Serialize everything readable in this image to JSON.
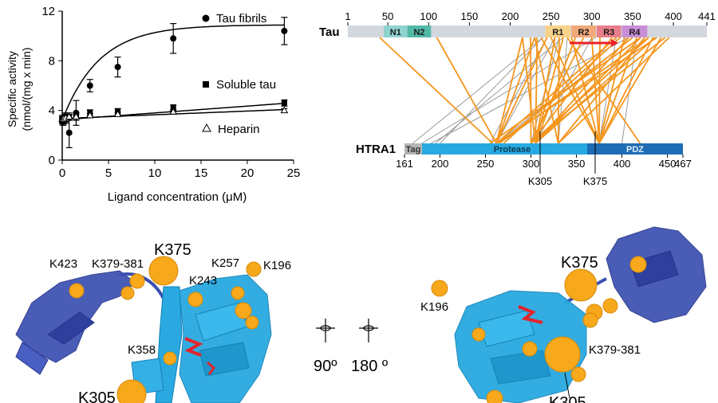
{
  "chart_data": {
    "type": "scatter",
    "xlabel": "Ligand concentration (μM)",
    "ylabel_line1": "Specific activity",
    "ylabel_line2": "(nmol/(mg x min)",
    "xlim": [
      0,
      25
    ],
    "ylim": [
      0,
      12
    ],
    "x_ticks": [
      0,
      5,
      10,
      15,
      20,
      25
    ],
    "y_ticks": [
      0,
      4,
      8,
      12
    ],
    "grid": false,
    "legend": "inline-right",
    "series": [
      {
        "name": "Tau fibrils",
        "marker": "circle",
        "x": [
          0,
          0.1,
          0.2,
          0.375,
          0.75,
          1.5,
          3,
          6,
          12,
          24
        ],
        "y": [
          3.3,
          3.1,
          3.2,
          3.4,
          2.2,
          3.8,
          6.0,
          7.5,
          9.8,
          10.4
        ],
        "err": [
          0.3,
          0.3,
          0.3,
          0.4,
          1.2,
          1.0,
          0.5,
          0.8,
          1.2,
          1.1
        ],
        "fit": {
          "y0": 3.2,
          "ymax": 10.9,
          "k": 0.25
        }
      },
      {
        "name": "Soluble tau",
        "marker": "square",
        "x": [
          0,
          0.1,
          0.2,
          0.375,
          0.75,
          1.5,
          3,
          6,
          12,
          24
        ],
        "y": [
          3.2,
          3.3,
          3.3,
          3.4,
          3.5,
          3.5,
          3.8,
          3.9,
          4.2,
          4.6
        ],
        "err": [
          0.3,
          0.3,
          0.3,
          0.3,
          0.3,
          0.3,
          0.25,
          0.25,
          0.25,
          0.25
        ],
        "fit": {
          "y0": 3.25,
          "slope": 0.055,
          "curve": 0.0
        }
      },
      {
        "name": "Heparin",
        "marker": "triangle-open",
        "x": [
          0,
          0.1,
          0.2,
          0.375,
          0.75,
          1.5,
          3,
          6,
          12,
          24
        ],
        "y": [
          3.3,
          3.3,
          3.4,
          3.4,
          3.5,
          3.5,
          3.6,
          3.7,
          3.9,
          4.0
        ],
        "err": [
          0.15,
          0.15,
          0.15,
          0.15,
          0.15,
          0.15,
          0.15,
          0.15,
          0.15,
          0.15
        ],
        "fit": {
          "y0": 3.35,
          "slope": 0.03,
          "curve": 0.0
        }
      }
    ]
  },
  "crosslink_map": {
    "tau_label": "Tau",
    "htra1_label": "HTRA1",
    "tau_ticks": [
      "1",
      "50",
      "100",
      "150",
      "200",
      "250",
      "300",
      "350",
      "400",
      "441"
    ],
    "tau_domains": [
      {
        "label": "N1",
        "start": 45,
        "end": 74,
        "color": "#8fd3d0"
      },
      {
        "label": "N2",
        "start": 74,
        "end": 103,
        "color": "#52b9a6"
      },
      {
        "label": "R1",
        "start": 243,
        "end": 274,
        "color": "#f8d28a"
      },
      {
        "label": "R2",
        "start": 275,
        "end": 305,
        "color": "#f1a87a"
      },
      {
        "label": "R3",
        "start": 306,
        "end": 336,
        "color": "#e87f8a"
      },
      {
        "label": "R4",
        "start": 337,
        "end": 368,
        "color": "#c88ed6"
      }
    ],
    "htra1_domains": [
      {
        "label": "Tag",
        "color": "#b5b5b5"
      },
      {
        "label": "Protease",
        "color": "#27aae1"
      },
      {
        "label": "PDZ",
        "color": "#1f6db5"
      }
    ],
    "htra1_ticks": [
      "161",
      "200",
      "250",
      "300",
      "350",
      "400",
      "450",
      "467"
    ],
    "htra1_sites": [
      "K305",
      "K375"
    ],
    "links_orange": [
      [
        40,
        258
      ],
      [
        110,
        262
      ],
      [
        215,
        262
      ],
      [
        215,
        305
      ],
      [
        225,
        300
      ],
      [
        230,
        262
      ],
      [
        230,
        330
      ],
      [
        233,
        305
      ],
      [
        238,
        375
      ],
      [
        245,
        262
      ],
      [
        250,
        375
      ],
      [
        255,
        305
      ],
      [
        260,
        330
      ],
      [
        265,
        305
      ],
      [
        270,
        420
      ],
      [
        275,
        375
      ],
      [
        280,
        305
      ],
      [
        290,
        300
      ],
      [
        300,
        375
      ],
      [
        310,
        375
      ],
      [
        325,
        300
      ],
      [
        330,
        262
      ],
      [
        335,
        270
      ],
      [
        340,
        375
      ],
      [
        345,
        305
      ],
      [
        350,
        265
      ],
      [
        355,
        375
      ],
      [
        360,
        305
      ],
      [
        360,
        255
      ],
      [
        365,
        330
      ],
      [
        370,
        300
      ],
      [
        370,
        265
      ],
      [
        375,
        375
      ],
      [
        378,
        305
      ],
      [
        380,
        262
      ],
      [
        385,
        375
      ],
      [
        390,
        300
      ],
      [
        395,
        330
      ]
    ],
    "links_gray": [
      [
        240,
        170
      ],
      [
        240,
        200
      ],
      [
        245,
        255
      ],
      [
        255,
        262
      ],
      [
        260,
        300
      ],
      [
        265,
        195
      ],
      [
        270,
        330
      ],
      [
        300,
        305
      ],
      [
        305,
        180
      ],
      [
        330,
        375
      ],
      [
        345,
        190
      ],
      [
        350,
        262
      ],
      [
        355,
        400
      ]
    ]
  },
  "structure_labels": {
    "left": [
      "K423",
      "K379-381",
      "K375",
      "K257",
      "K196",
      "K243",
      "K358",
      "K305"
    ],
    "right": [
      "K375",
      "K196",
      "K379-381",
      "K305"
    ],
    "rotation_a": "90º",
    "rotation_b": "180 º"
  }
}
